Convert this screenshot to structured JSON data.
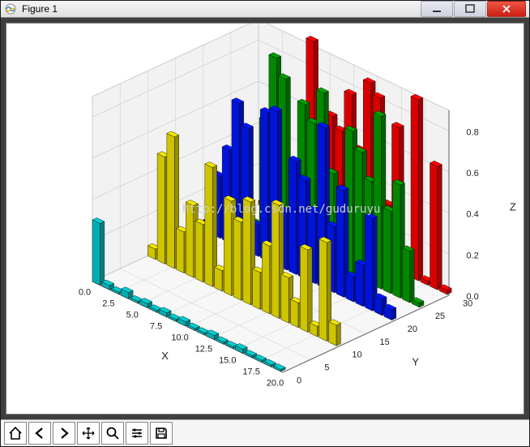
{
  "window": {
    "title": "Figure 1",
    "chrome": {
      "frame_color": "#1a1a1a",
      "titlebar_gradient": [
        "#f5f5f5",
        "#e0e0e0"
      ],
      "close_color": "#c81e12",
      "button_bg": "#cfd3e0",
      "content_bg": "#3f3f3f"
    }
  },
  "toolbar_icons": [
    "home",
    "back",
    "forward",
    "pan",
    "zoom",
    "configure",
    "save"
  ],
  "watermark": "http://blog.csdn.net/guduruyu",
  "chart": {
    "type": "bar3d",
    "background_color": "#ffffff",
    "pane_color": "#f2f2f2",
    "grid_color": "#cccccc",
    "edge_color": "#000000",
    "view": {
      "elev": 22,
      "azim": -60
    },
    "axis_label_fontsize": 12,
    "tick_fontsize": 10,
    "x": {
      "label": "X",
      "lim": [
        0,
        20
      ],
      "ticks": [
        0.0,
        2.5,
        5.0,
        7.5,
        10.0,
        12.5,
        15.0,
        17.5,
        20.0
      ]
    },
    "y": {
      "label": "Y",
      "lim": [
        0,
        30
      ],
      "ticks": [
        0,
        5,
        10,
        15,
        20,
        25,
        30
      ]
    },
    "z": {
      "label": "Z",
      "lim": [
        0.0,
        0.9
      ],
      "ticks": [
        0.0,
        0.2,
        0.4,
        0.6,
        0.8
      ]
    },
    "bar": {
      "dx": 0.8,
      "dy": 0.8,
      "edge_color": "#000000",
      "alpha": 1.0
    },
    "series": [
      {
        "color": "#00ced1",
        "y": 0,
        "x": [
          0,
          1,
          2,
          3,
          4,
          5,
          6,
          7,
          8,
          9,
          10,
          11,
          12,
          13,
          14,
          15,
          16,
          17,
          18,
          19
        ],
        "z": [
          0.3,
          0.02,
          0.01,
          0.03,
          0.01,
          0.02,
          0.01,
          0.02,
          0.01,
          0.02,
          0.01,
          0.01,
          0.02,
          0.01,
          0.01,
          0.02,
          0.01,
          0.01,
          0.01,
          0.01
        ]
      },
      {
        "color": "#f2e600",
        "y": 10,
        "x": [
          0,
          1,
          2,
          3,
          4,
          5,
          6,
          7,
          8,
          9,
          10,
          11,
          12,
          13,
          14,
          15,
          16,
          17,
          18,
          19
        ],
        "z": [
          0.05,
          0.52,
          0.64,
          0.2,
          0.35,
          0.28,
          0.58,
          0.1,
          0.46,
          0.38,
          0.5,
          0.18,
          0.33,
          0.55,
          0.22,
          0.12,
          0.4,
          0.05,
          0.48,
          0.1
        ]
      },
      {
        "color": "#0018ff",
        "y": 20,
        "x": [
          0,
          1,
          2,
          3,
          4,
          5,
          6,
          7,
          8,
          9,
          10,
          11,
          12,
          13,
          14,
          15,
          16,
          17,
          18,
          19
        ],
        "z": [
          0.05,
          0.3,
          0.45,
          0.7,
          0.6,
          0.15,
          0.72,
          0.75,
          0.28,
          0.55,
          0.48,
          0.35,
          0.78,
          0.32,
          0.52,
          0.12,
          0.2,
          0.45,
          0.08,
          0.05
        ]
      },
      {
        "color": "#00a000",
        "y": 25,
        "x": [
          0,
          1,
          2,
          3,
          4,
          5,
          6,
          7,
          8,
          9,
          10,
          11,
          12,
          13,
          14,
          15,
          16,
          17,
          18,
          19
        ],
        "z": [
          0.03,
          0.03,
          0.03,
          0.55,
          0.88,
          0.8,
          0.35,
          0.72,
          0.65,
          0.82,
          0.45,
          0.2,
          0.7,
          0.62,
          0.5,
          0.84,
          0.4,
          0.55,
          0.25,
          0.02
        ]
      },
      {
        "color": "#ff0000",
        "y": 30,
        "x": [
          0,
          1,
          2,
          3,
          4,
          5,
          6,
          7,
          8,
          9,
          10,
          11,
          12,
          13,
          14,
          15,
          16,
          17,
          18,
          19
        ],
        "z": [
          0.02,
          0.02,
          0.02,
          0.02,
          0.02,
          0.92,
          0.03,
          0.6,
          0.55,
          0.75,
          0.5,
          0.85,
          0.8,
          0.3,
          0.7,
          0.02,
          0.88,
          0.02,
          0.6,
          0.02
        ]
      }
    ]
  }
}
